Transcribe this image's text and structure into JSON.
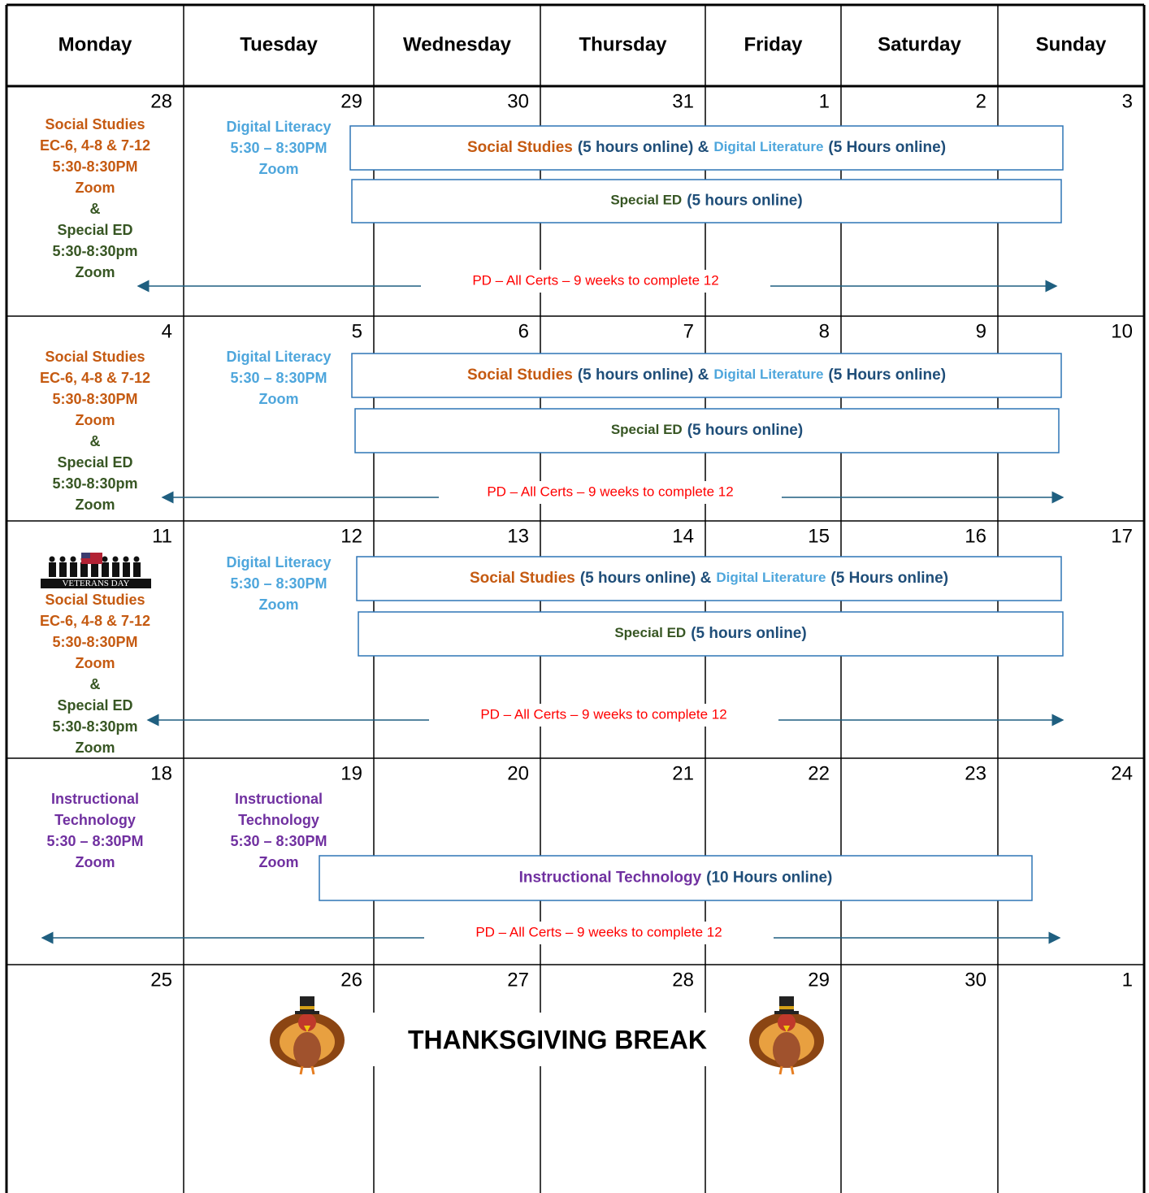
{
  "header": {
    "days": [
      "Monday",
      "Tuesday",
      "Wednesday",
      "Thursday",
      "Friday",
      "Saturday",
      "Sunday"
    ]
  },
  "weeks": [
    {
      "dates": [
        28,
        29,
        30,
        31,
        1,
        2,
        3
      ],
      "monday": [
        {
          "color": "#c55a11",
          "lines": [
            "Social Studies",
            "EC-6, 4-8 & 7-12",
            "5:30-8:30PM",
            "Zoom"
          ]
        },
        {
          "color": "#375623",
          "lines": [
            "&",
            "Special ED",
            "5:30-8:30pm",
            "Zoom"
          ]
        }
      ],
      "tuesday": [
        {
          "color": "#4ea6dc",
          "lines": [
            "Digital Literacy",
            "5:30 – 8:30PM",
            "Zoom"
          ]
        }
      ],
      "bars": [
        {
          "segments": [
            {
              "text": "Social Studies",
              "color": "#c55a11"
            },
            {
              "text": "(5 hours online) &",
              "color": "#1f4e79"
            },
            {
              "text": "Digital Literature",
              "color": "#4ea6dc"
            },
            {
              "text": "(5 Hours online)",
              "color": "#1f4e79"
            }
          ]
        },
        {
          "segments": [
            {
              "text": "Special ED",
              "color": "#375623"
            },
            {
              "text": "(5 hours online)",
              "color": "#1f4e79"
            }
          ]
        }
      ],
      "pd": {
        "text": "PD – All Certs – 9 weeks to complete 12",
        "color": "#ff0000"
      }
    },
    {
      "dates": [
        4,
        5,
        6,
        7,
        8,
        9,
        10
      ],
      "monday": [
        {
          "color": "#c55a11",
          "lines": [
            "Social Studies",
            "EC-6, 4-8 & 7-12",
            "5:30-8:30PM",
            "Zoom"
          ]
        },
        {
          "color": "#375623",
          "lines": [
            "&",
            "Special ED",
            "5:30-8:30pm",
            "Zoom"
          ]
        }
      ],
      "tuesday": [
        {
          "color": "#4ea6dc",
          "lines": [
            "Digital Literacy",
            "5:30 – 8:30PM",
            "Zoom"
          ]
        }
      ],
      "bars": [
        {
          "segments": [
            {
              "text": "Social Studies",
              "color": "#c55a11"
            },
            {
              "text": "(5 hours online) &",
              "color": "#1f4e79"
            },
            {
              "text": "Digital Literature",
              "color": "#4ea6dc"
            },
            {
              "text": "(5 Hours online)",
              "color": "#1f4e79"
            }
          ]
        },
        {
          "segments": [
            {
              "text": "Special ED",
              "color": "#375623"
            },
            {
              "text": "(5 hours online)",
              "color": "#1f4e79"
            }
          ]
        }
      ],
      "pd": {
        "text": "PD – All Certs – 9 weeks to complete 12",
        "color": "#ff0000"
      }
    },
    {
      "dates": [
        11,
        12,
        13,
        14,
        15,
        16,
        17
      ],
      "image_caption": "VETERANS DAY",
      "monday": [
        {
          "color": "#c55a11",
          "lines": [
            "Social Studies",
            "EC-6, 4-8 & 7-12",
            "5:30-8:30PM",
            "Zoom"
          ]
        },
        {
          "color": "#375623",
          "lines": [
            "&",
            "Special ED",
            "5:30-8:30pm",
            "Zoom"
          ]
        }
      ],
      "tuesday": [
        {
          "color": "#4ea6dc",
          "lines": [
            "Digital Literacy",
            "5:30 – 8:30PM",
            "Zoom"
          ]
        }
      ],
      "bars": [
        {
          "segments": [
            {
              "text": "Social Studies",
              "color": "#c55a11"
            },
            {
              "text": "(5 hours online) &",
              "color": "#1f4e79"
            },
            {
              "text": "Digital Literature",
              "color": "#4ea6dc"
            },
            {
              "text": "(5 Hours online)",
              "color": "#1f4e79"
            }
          ]
        },
        {
          "segments": [
            {
              "text": "Special ED",
              "color": "#375623"
            },
            {
              "text": "(5 hours online)",
              "color": "#1f4e79"
            }
          ]
        }
      ],
      "pd": {
        "text": "PD – All Certs – 9 weeks to complete 12",
        "color": "#ff0000"
      }
    },
    {
      "dates": [
        18,
        19,
        20,
        21,
        22,
        23,
        24
      ],
      "monday": [
        {
          "color": "#7030a0",
          "lines": [
            "Instructional",
            "Technology",
            "5:30 – 8:30PM",
            "Zoom"
          ]
        }
      ],
      "tuesday": [
        {
          "color": "#7030a0",
          "lines": [
            "Instructional",
            "Technology",
            "5:30 – 8:30PM",
            "Zoom"
          ]
        }
      ],
      "bars": [
        {
          "segments": [
            {
              "text": "Instructional Technology",
              "color": "#7030a0"
            },
            {
              "text": "(10 Hours online)",
              "color": "#1f4e79"
            }
          ]
        }
      ],
      "pd": {
        "text": "PD – All Certs – 9 weeks to complete 12",
        "color": "#ff0000"
      }
    },
    {
      "dates": [
        25,
        26,
        27,
        28,
        29,
        30,
        1
      ],
      "banner": "THANKSGIVING BREAK"
    }
  ]
}
